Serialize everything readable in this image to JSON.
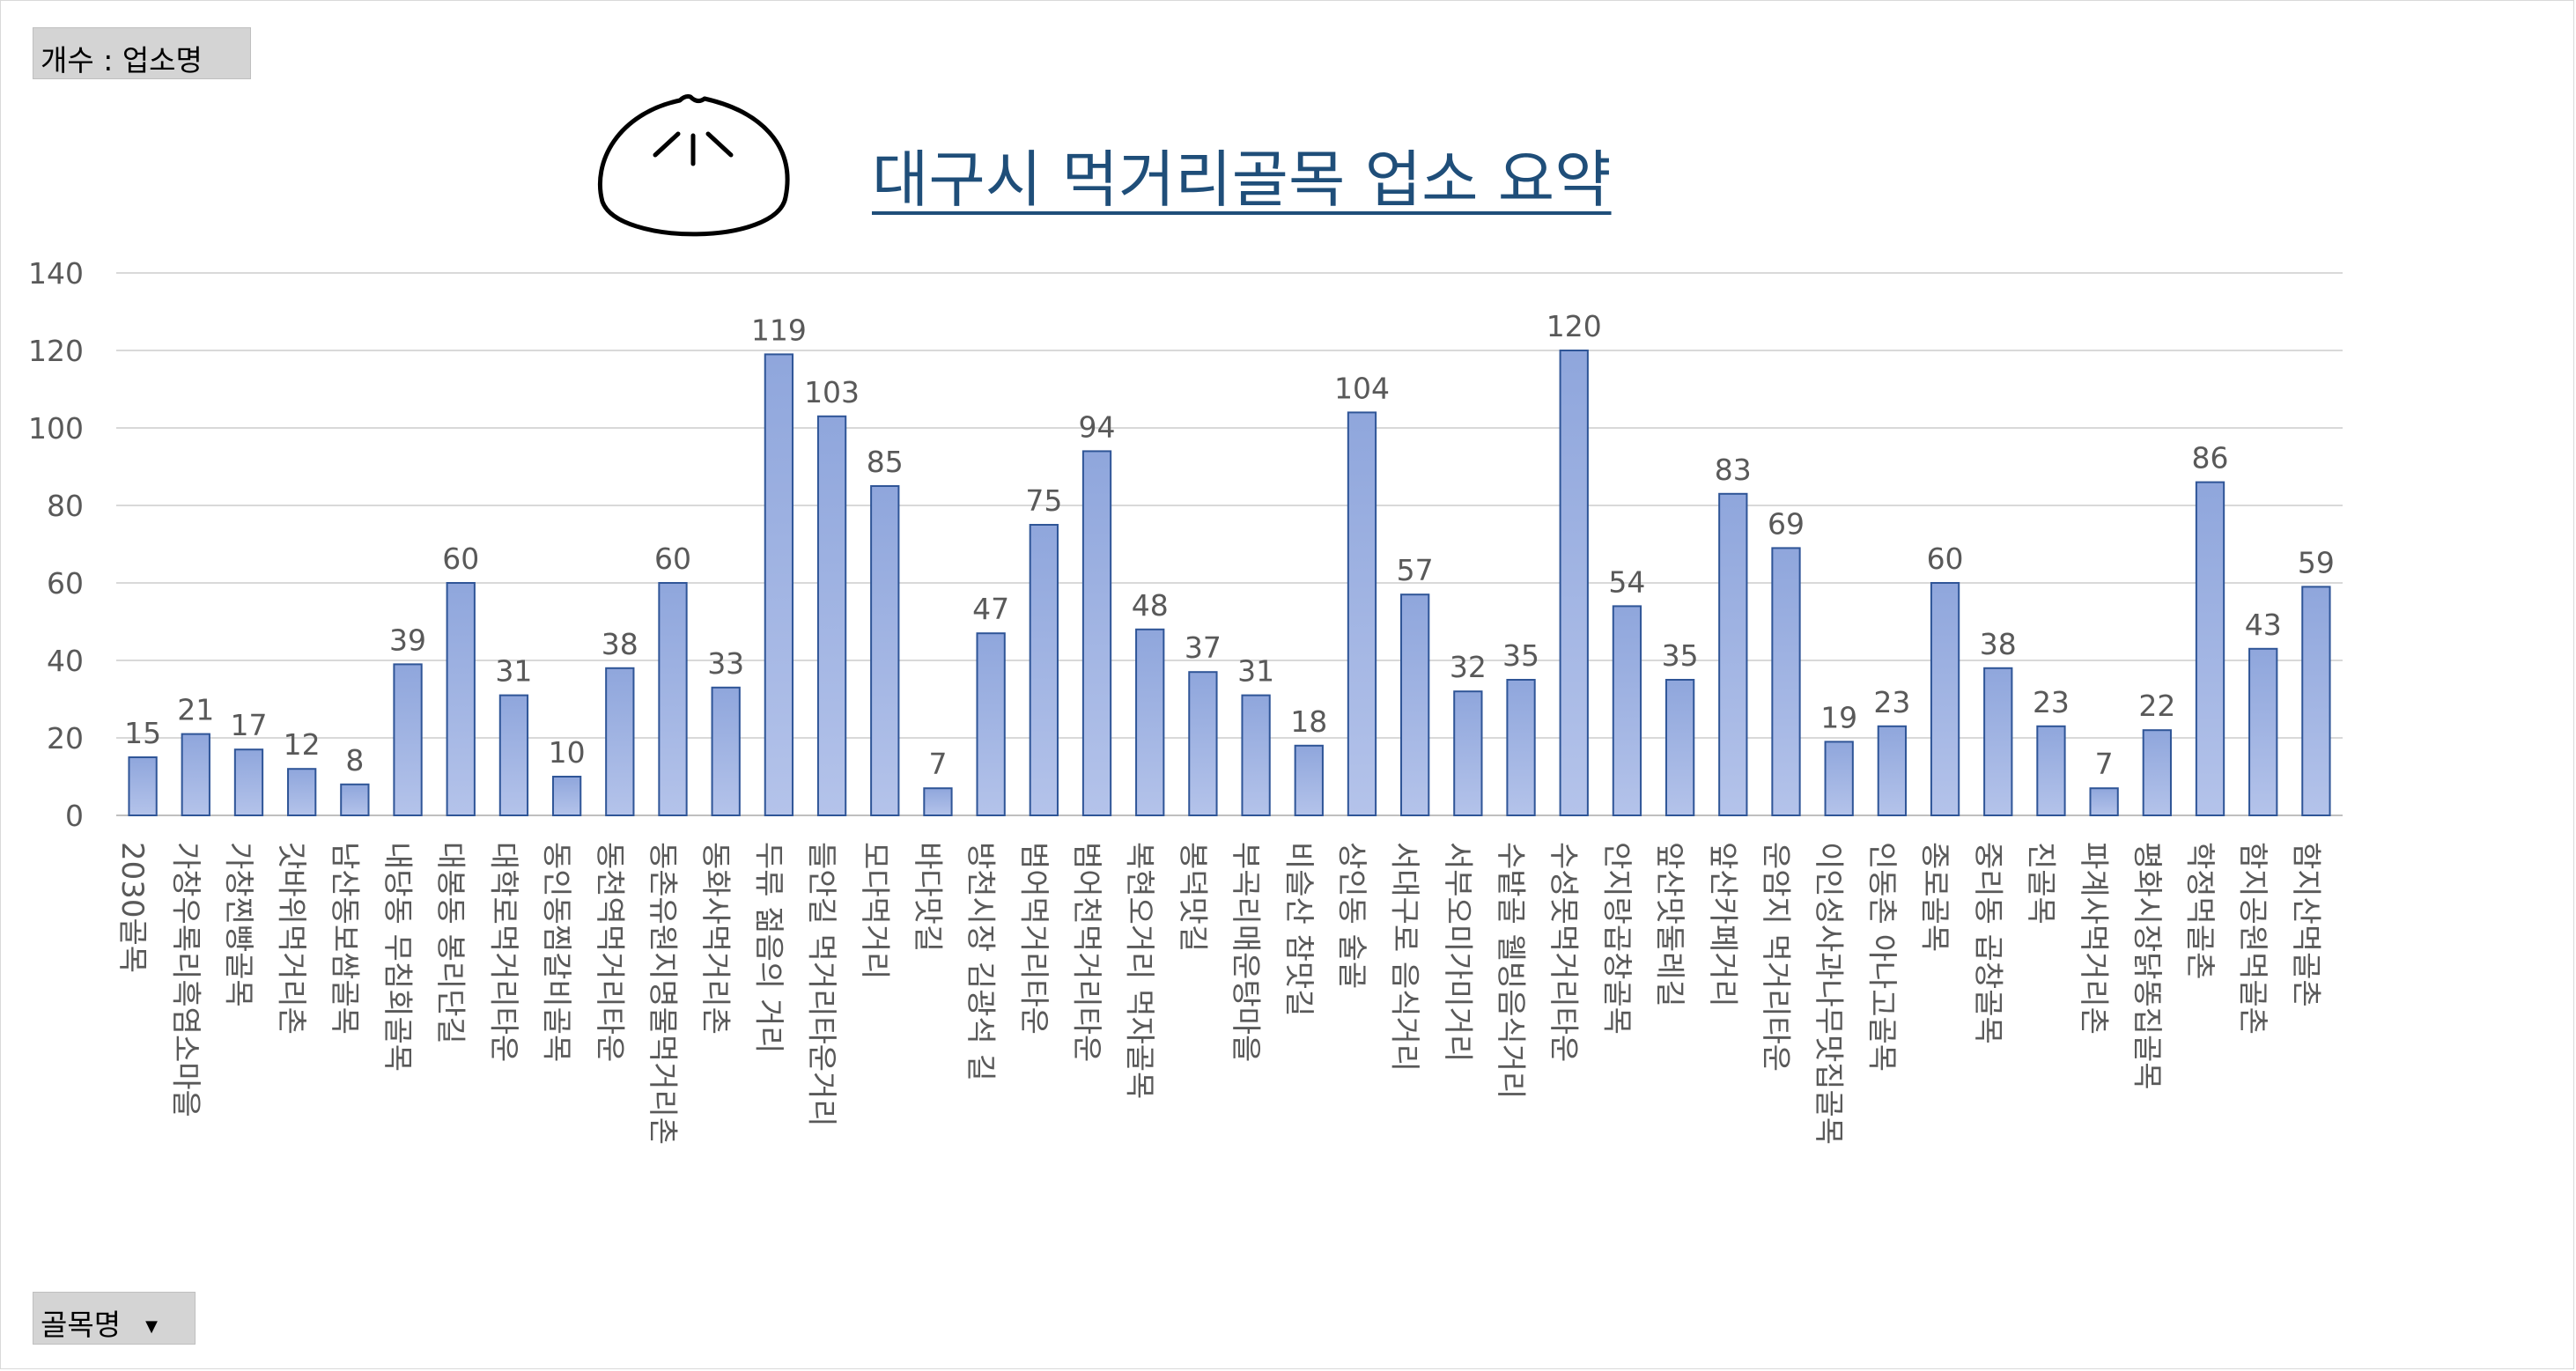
{
  "pivot": {
    "value_field_label": "개수 : 업소명",
    "row_field_label": "골목명",
    "row_field_dropdown_glyph": "▼"
  },
  "icons": {
    "title_icon": "dumpling-bun-icon",
    "dropdown_icon": "chevron-down-icon"
  },
  "colors": {
    "bar_fill_top": "#8fa6dc",
    "bar_fill_bottom": "#b4c3ea",
    "bar_stroke": "#2f5597",
    "title": "#1f4e79",
    "axis_text": "#595959",
    "grid": "#d9d9d9"
  },
  "chart_data": {
    "type": "bar",
    "title": "대구시 먹거리골목 업소 요약",
    "xlabel": "",
    "ylabel": "",
    "ylim": [
      0,
      140
    ],
    "yticks": [
      0,
      20,
      40,
      60,
      80,
      100,
      120,
      140
    ],
    "grid": true,
    "legend": "none",
    "data_labels": true,
    "categories": [
      "2030골목",
      "가창우록리흑염소마을",
      "가창찐빵골목",
      "갓바위먹거리촌",
      "남산동보쌈골목",
      "내당동 무침회골목",
      "대봉동 봉리단길",
      "대학로먹거리타운",
      "동인동찜갈비골목",
      "동천역먹거리타운",
      "동촌유원지명물먹거리촌",
      "동화사먹거리촌",
      "두류 젊음의 거리",
      "들안길 먹거리타운거리",
      "모다먹거리",
      "바다맛길",
      "방천시장 김광석 길",
      "범어먹거리타운",
      "범어천먹거리타운",
      "복현오거리 먹자골목",
      "봉덕맛길",
      "부곡리매운탕마을",
      "비슬산 참맛길",
      "상인동 술골",
      "서대구로 음식거리",
      "서부오미가미거리",
      "수밭골 웰빙음식거리",
      "수성못먹거리타운",
      "안지랑곱창골목",
      "앞산맛둘레길",
      "앞산카페거리",
      "운암지 먹거리타운",
      "이인성사과나무맛집골목",
      "인동촌 아나고골목",
      "종로골목",
      "중리동 곱창골목",
      "진골목",
      "파계사먹거리촌",
      "평화시장닭똥집골목",
      "학정먹골촌",
      "함지공원먹골촌",
      "함지산먹골촌"
    ],
    "values": [
      15,
      21,
      17,
      12,
      8,
      39,
      60,
      31,
      10,
      38,
      60,
      33,
      119,
      103,
      85,
      7,
      47,
      75,
      94,
      48,
      37,
      31,
      18,
      104,
      57,
      32,
      35,
      120,
      54,
      35,
      83,
      69,
      19,
      23,
      60,
      38,
      23,
      7,
      22,
      86,
      43,
      59
    ]
  }
}
